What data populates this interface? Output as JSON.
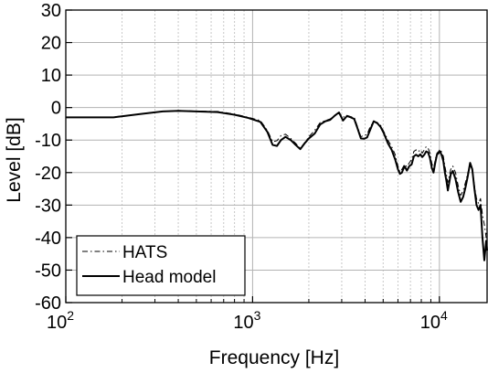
{
  "chart_data": {
    "type": "line",
    "title": "",
    "xlabel": "Frequency [Hz]",
    "ylabel": "Level [dB]",
    "xscale": "log",
    "xlim": [
      100,
      18000
    ],
    "ylim": [
      -60,
      30
    ],
    "grid": true,
    "legend_position": "bottom-left",
    "x_ticks": [
      {
        "value": 100,
        "base": "10",
        "exp": "2"
      },
      {
        "value": 1000,
        "base": "10",
        "exp": "3"
      },
      {
        "value": 10000,
        "base": "10",
        "exp": "4"
      }
    ],
    "y_ticks": [
      30,
      20,
      10,
      0,
      -10,
      -20,
      -30,
      -40,
      -50,
      -60
    ],
    "series": [
      {
        "name": "HATS",
        "line_style": "dashdot",
        "color": "#000000",
        "points": [
          [
            100,
            -3
          ],
          [
            180,
            -2.9
          ],
          [
            250,
            -2
          ],
          [
            330,
            -1.2
          ],
          [
            400,
            -0.9
          ],
          [
            500,
            -1.1
          ],
          [
            650,
            -1.2
          ],
          [
            800,
            -2
          ],
          [
            950,
            -3
          ],
          [
            1100,
            -4
          ],
          [
            1200,
            -7
          ],
          [
            1280,
            -10.5
          ],
          [
            1350,
            -10.2
          ],
          [
            1420,
            -8.6
          ],
          [
            1500,
            -8.2
          ],
          [
            1600,
            -9.5
          ],
          [
            1700,
            -11
          ],
          [
            1800,
            -12.5
          ],
          [
            1900,
            -10.8
          ],
          [
            2000,
            -9
          ],
          [
            2150,
            -7
          ],
          [
            2300,
            -4.6
          ],
          [
            2450,
            -4
          ],
          [
            2600,
            -3.5
          ],
          [
            2750,
            -2.5
          ],
          [
            2900,
            -1.6
          ],
          [
            3050,
            -3
          ],
          [
            3200,
            -2.4
          ],
          [
            3350,
            -2.8
          ],
          [
            3500,
            -3
          ],
          [
            3650,
            -6
          ],
          [
            3800,
            -9
          ],
          [
            3950,
            -8.5
          ],
          [
            4100,
            -8.3
          ],
          [
            4250,
            -6
          ],
          [
            4450,
            -4.2
          ],
          [
            4650,
            -4.6
          ],
          [
            4850,
            -5.5
          ],
          [
            5050,
            -7.5
          ],
          [
            5300,
            -10
          ],
          [
            5550,
            -12
          ],
          [
            5800,
            -14.5
          ],
          [
            6000,
            -18
          ],
          [
            6150,
            -19.8
          ],
          [
            6300,
            -19
          ],
          [
            6500,
            -17.5
          ],
          [
            6700,
            -18.2
          ],
          [
            6900,
            -17
          ],
          [
            7100,
            -16
          ],
          [
            7300,
            -13.5
          ],
          [
            7500,
            -13
          ],
          [
            7700,
            -13.6
          ],
          [
            7900,
            -13
          ],
          [
            8100,
            -14
          ],
          [
            8300,
            -13
          ],
          [
            8500,
            -12
          ],
          [
            8700,
            -12.5
          ],
          [
            8900,
            -14
          ],
          [
            9100,
            -17
          ],
          [
            9300,
            -19
          ],
          [
            9500,
            -16
          ],
          [
            9700,
            -14
          ],
          [
            9900,
            -13.5
          ],
          [
            10100,
            -12.8
          ],
          [
            10300,
            -13.8
          ],
          [
            10500,
            -15
          ],
          [
            10700,
            -18
          ],
          [
            10900,
            -20.5
          ],
          [
            11100,
            -23
          ],
          [
            11300,
            -21
          ],
          [
            11500,
            -19
          ],
          [
            11800,
            -18
          ],
          [
            12200,
            -20
          ],
          [
            12600,
            -24
          ],
          [
            13000,
            -27
          ],
          [
            13400,
            -25.5
          ],
          [
            13800,
            -23
          ],
          [
            14200,
            -20
          ],
          [
            14600,
            -18
          ],
          [
            15000,
            -19
          ],
          [
            15400,
            -24
          ],
          [
            15800,
            -28
          ],
          [
            16200,
            -29.5
          ],
          [
            16600,
            -28
          ],
          [
            17000,
            -33
          ],
          [
            17400,
            -36
          ],
          [
            17800,
            -40
          ],
          [
            18000,
            -37
          ]
        ]
      },
      {
        "name": "Head model",
        "line_style": "solid",
        "color": "#000000",
        "points": [
          [
            100,
            -3
          ],
          [
            180,
            -3
          ],
          [
            250,
            -2
          ],
          [
            330,
            -1.2
          ],
          [
            400,
            -1
          ],
          [
            500,
            -1.2
          ],
          [
            650,
            -1.4
          ],
          [
            800,
            -2.2
          ],
          [
            950,
            -3.2
          ],
          [
            1100,
            -4.4
          ],
          [
            1200,
            -7.5
          ],
          [
            1280,
            -11.5
          ],
          [
            1350,
            -11.8
          ],
          [
            1420,
            -10
          ],
          [
            1500,
            -9
          ],
          [
            1600,
            -10
          ],
          [
            1700,
            -11.5
          ],
          [
            1800,
            -12.8
          ],
          [
            1900,
            -11
          ],
          [
            2000,
            -9.5
          ],
          [
            2150,
            -8
          ],
          [
            2300,
            -5.2
          ],
          [
            2450,
            -4.2
          ],
          [
            2600,
            -3.8
          ],
          [
            2750,
            -2.5
          ],
          [
            2900,
            -1.5
          ],
          [
            3050,
            -4
          ],
          [
            3200,
            -2.6
          ],
          [
            3350,
            -3
          ],
          [
            3500,
            -3.5
          ],
          [
            3650,
            -6.5
          ],
          [
            3800,
            -9.5
          ],
          [
            3950,
            -9.6
          ],
          [
            4100,
            -9.2
          ],
          [
            4250,
            -7
          ],
          [
            4450,
            -4.2
          ],
          [
            4650,
            -4.8
          ],
          [
            4850,
            -6
          ],
          [
            5050,
            -8
          ],
          [
            5300,
            -11
          ],
          [
            5550,
            -13
          ],
          [
            5800,
            -16
          ],
          [
            6000,
            -19
          ],
          [
            6150,
            -20.4
          ],
          [
            6300,
            -20
          ],
          [
            6500,
            -18
          ],
          [
            6700,
            -19.4
          ],
          [
            6900,
            -18
          ],
          [
            7100,
            -17.5
          ],
          [
            7300,
            -15
          ],
          [
            7500,
            -14.5
          ],
          [
            7700,
            -15
          ],
          [
            7900,
            -14.4
          ],
          [
            8100,
            -15.2
          ],
          [
            8300,
            -14.5
          ],
          [
            8500,
            -13.5
          ],
          [
            8700,
            -13.8
          ],
          [
            8900,
            -15.5
          ],
          [
            9100,
            -18.5
          ],
          [
            9300,
            -20
          ],
          [
            9500,
            -17
          ],
          [
            9700,
            -14.5
          ],
          [
            9900,
            -14
          ],
          [
            10100,
            -13.5
          ],
          [
            10300,
            -14.8
          ],
          [
            10500,
            -16.5
          ],
          [
            10700,
            -20
          ],
          [
            10900,
            -22.5
          ],
          [
            11100,
            -25.5
          ],
          [
            11300,
            -23
          ],
          [
            11500,
            -20.5
          ],
          [
            11800,
            -19.5
          ],
          [
            12200,
            -22
          ],
          [
            12600,
            -26
          ],
          [
            13000,
            -29
          ],
          [
            13400,
            -27.5
          ],
          [
            13800,
            -24.5
          ],
          [
            14200,
            -21
          ],
          [
            14600,
            -17
          ],
          [
            15000,
            -19
          ],
          [
            15400,
            -25
          ],
          [
            15800,
            -30
          ],
          [
            16200,
            -31.5
          ],
          [
            16600,
            -30
          ],
          [
            17000,
            -40
          ],
          [
            17400,
            -47
          ],
          [
            17800,
            -41
          ],
          [
            18000,
            -44
          ]
        ]
      }
    ]
  }
}
